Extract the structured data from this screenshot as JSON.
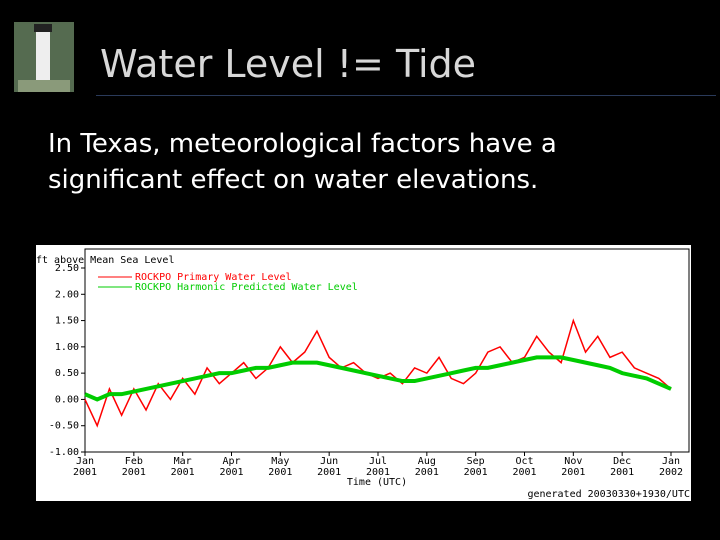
{
  "slide": {
    "title": "Water Level != Tide",
    "body": [
      "In Texas, meteorological factors have a",
      "significant effect on water elevations."
    ]
  },
  "chart_data": {
    "type": "line",
    "y_label": "ft above Mean Sea Level",
    "x_label": "Time (UTC)",
    "footer": "generated 20030330+1930/UTC",
    "categories": [
      "Jan 2001",
      null,
      null,
      null,
      "Feb 2001",
      null,
      null,
      null,
      "Mar 2001",
      null,
      null,
      null,
      "Apr 2001",
      null,
      null,
      null,
      "May 2001",
      null,
      null,
      null,
      "Jun 2001",
      null,
      null,
      null,
      "Jul 2001",
      null,
      null,
      null,
      "Aug 2001",
      null,
      null,
      null,
      "Sep 2001",
      null,
      null,
      null,
      "Oct 2001",
      null,
      null,
      null,
      "Nov 2001",
      null,
      null,
      null,
      "Dec 2001",
      null,
      null,
      null,
      "Jan 2002"
    ],
    "series": [
      {
        "name": "ROCKPO Primary Water Level",
        "color": "#ff0000",
        "values": [
          0.0,
          -0.5,
          0.2,
          -0.3,
          0.2,
          -0.2,
          0.3,
          0.0,
          0.4,
          0.1,
          0.6,
          0.3,
          0.5,
          0.7,
          0.4,
          0.6,
          1.0,
          0.7,
          0.9,
          1.3,
          0.8,
          0.6,
          0.7,
          0.5,
          0.4,
          0.5,
          0.3,
          0.6,
          0.5,
          0.8,
          0.4,
          0.3,
          0.5,
          0.9,
          1.0,
          0.7,
          0.8,
          1.2,
          0.9,
          0.7,
          1.5,
          0.9,
          1.2,
          0.8,
          0.9,
          0.6,
          0.5,
          0.4,
          0.2
        ]
      },
      {
        "name": "ROCKPO Harmonic Predicted Water Level",
        "color": "#00cc00",
        "values": [
          0.1,
          0.0,
          0.1,
          0.1,
          0.15,
          0.2,
          0.25,
          0.3,
          0.35,
          0.4,
          0.45,
          0.5,
          0.5,
          0.55,
          0.6,
          0.6,
          0.65,
          0.7,
          0.7,
          0.7,
          0.65,
          0.6,
          0.55,
          0.5,
          0.45,
          0.4,
          0.35,
          0.35,
          0.4,
          0.45,
          0.5,
          0.55,
          0.6,
          0.6,
          0.65,
          0.7,
          0.75,
          0.8,
          0.8,
          0.8,
          0.75,
          0.7,
          0.65,
          0.6,
          0.5,
          0.45,
          0.4,
          0.3,
          0.2
        ]
      }
    ],
    "ylim": [
      -1,
      2.5
    ],
    "yticks": [
      {
        "value": -1,
        "label": "-1.00"
      },
      {
        "value": -0.5,
        "label": "-0.50"
      },
      {
        "value": 0,
        "label": "0.00"
      },
      {
        "value": 0.5,
        "label": "0.50"
      },
      {
        "value": 1,
        "label": "1.00"
      },
      {
        "value": 1.5,
        "label": "1.50"
      },
      {
        "value": 2,
        "label": "2.00"
      },
      {
        "value": 2.5,
        "label": "2.50"
      }
    ],
    "grid": false
  }
}
